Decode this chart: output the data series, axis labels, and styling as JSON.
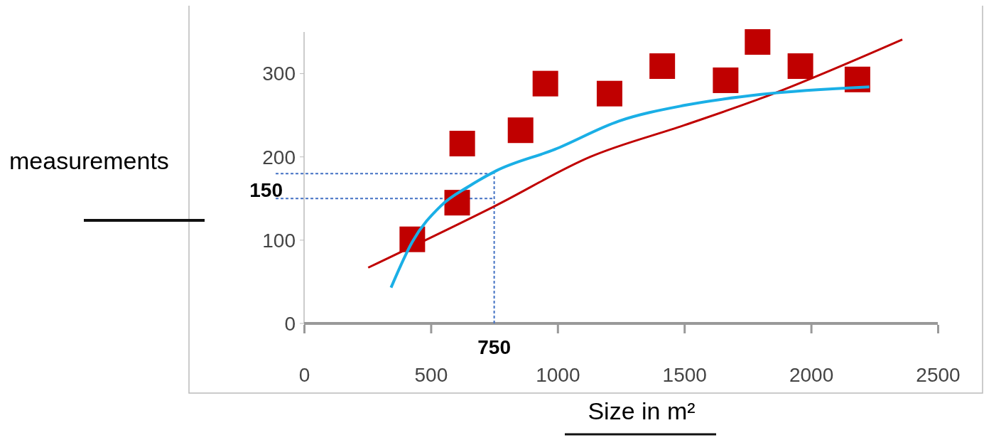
{
  "chart_data": {
    "type": "scatter",
    "xlabel": "Size in m²",
    "ylabel": "measurements",
    "xlim": [
      0,
      2500
    ],
    "ylim": [
      0,
      350
    ],
    "xticks": [
      0,
      500,
      1000,
      1500,
      2000,
      2500
    ],
    "yticks": [
      0,
      100,
      200,
      300
    ],
    "grid": false,
    "series": [
      {
        "marker": "square",
        "color": "#c00000",
        "x": [
          427,
          604,
          624,
          854,
          952,
          1205,
          1413,
          1663,
          1789,
          1958,
          2183
        ],
        "values": [
          101,
          145,
          216,
          232,
          288,
          276,
          309,
          292,
          338,
          309,
          293
        ]
      },
      {
        "type": "line",
        "color": "#c00000",
        "x": [
          253,
          753,
          1129,
          1500,
          1800,
          2360
        ],
        "values": [
          67,
          141,
          200,
          238,
          270,
          341
        ]
      },
      {
        "type": "line",
        "color": "#1aafe6",
        "x": [
          343,
          427,
          539,
          652,
          756,
          989,
          1242,
          1503,
          1803,
          2230
        ],
        "values": [
          43,
          98,
          141,
          165,
          183,
          209,
          243,
          262,
          275,
          284
        ]
      }
    ],
    "ref_lines": [
      {
        "axis": "y",
        "value": 150,
        "label": "150",
        "color": "#4472c4",
        "line_style": "dashed"
      },
      {
        "axis": "y",
        "value": 180,
        "label": null,
        "color": "#4472c4",
        "line_style": "dashed"
      },
      {
        "axis": "x",
        "value": 750,
        "label": "750",
        "color": "#4472c4",
        "line_style": "dashed"
      }
    ]
  }
}
